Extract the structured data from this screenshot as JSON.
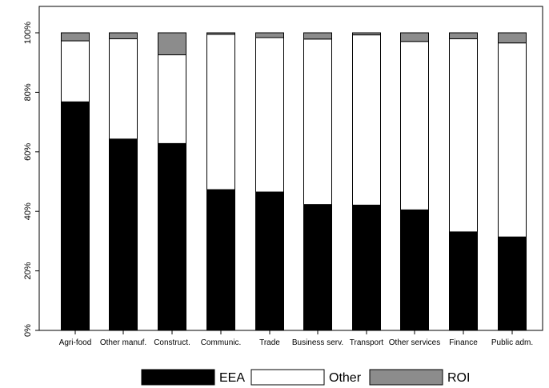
{
  "chart_data": {
    "type": "bar",
    "stacked": true,
    "categories": [
      "Agri-food",
      "Other manuf.",
      "Construct.",
      "Communic.",
      "Trade",
      "Business serv.",
      "Transport",
      "Other services",
      "Finance",
      "Public adm."
    ],
    "series": [
      {
        "name": "EEA",
        "color": "#000000",
        "values": [
          76.8,
          64.3,
          62.8,
          47.3,
          46.5,
          42.3,
          42.1,
          40.5,
          33.1,
          31.4
        ]
      },
      {
        "name": "Other",
        "color": "#ffffff",
        "values": [
          20.5,
          33.7,
          29.8,
          52.2,
          51.9,
          55.6,
          57.2,
          56.6,
          64.9,
          65.2
        ]
      },
      {
        "name": "ROI",
        "color": "#8c8c8c",
        "values": [
          2.7,
          2.0,
          7.4,
          0.5,
          1.6,
          2.1,
          0.7,
          2.9,
          2.0,
          3.4
        ]
      }
    ],
    "y_ticks": [
      "0%",
      "20%",
      "40%",
      "60%",
      "80%",
      "100%"
    ],
    "ylim": [
      0,
      100
    ],
    "legend_position": "bottom",
    "grid": false
  }
}
